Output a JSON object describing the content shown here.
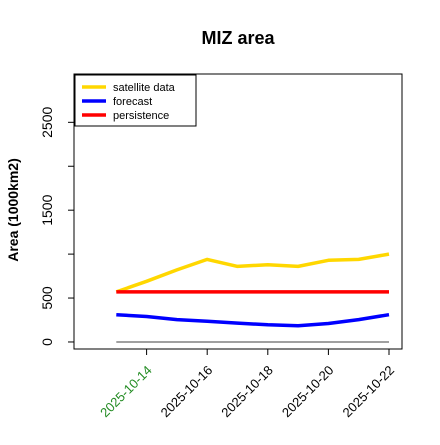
{
  "chart_data": {
    "type": "line",
    "title": "MIZ area",
    "ylabel": "Area (1000km2)",
    "xlabel": "",
    "x": [
      "2025-10-13",
      "2025-10-14",
      "2025-10-15",
      "2025-10-16",
      "2025-10-17",
      "2025-10-18",
      "2025-10-19",
      "2025-10-20",
      "2025-10-21",
      "2025-10-22"
    ],
    "xlim": [
      "2025-10-12",
      "2025-10-22"
    ],
    "ylim": [
      -80,
      3050
    ],
    "yticks": [
      0,
      500,
      1000,
      1500,
      2000,
      2500
    ],
    "ytick_labels": [
      "0",
      "500",
      "",
      "1500",
      "",
      "2500"
    ],
    "xticks": [
      "2025-10-14",
      "2025-10-16",
      "2025-10-18",
      "2025-10-20",
      "2025-10-22"
    ],
    "xtick_colors": [
      "#228B22",
      "#000000",
      "#000000",
      "#000000",
      "#000000"
    ],
    "series": [
      {
        "name": "satellite data",
        "color": "#FFD700",
        "values": [
          570,
          690,
          820,
          940,
          860,
          880,
          860,
          930,
          940,
          1000
        ]
      },
      {
        "name": "forecast",
        "color": "#0000FF",
        "values": [
          310,
          290,
          255,
          235,
          215,
          195,
          185,
          210,
          255,
          310
        ]
      },
      {
        "name": "persistence",
        "color": "#FF0000",
        "values": [
          570,
          570,
          570,
          570,
          570,
          570,
          570,
          570,
          570,
          570
        ]
      }
    ],
    "baseline": {
      "value": 0,
      "color": "#808080"
    },
    "legend": "top-left",
    "grid": false
  }
}
